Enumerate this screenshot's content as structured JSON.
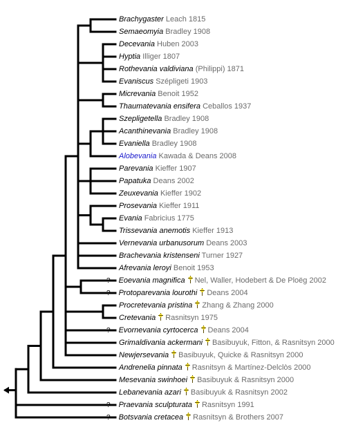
{
  "root_arrow_icon": "triangle-left-icon",
  "fossil_marker_icon": "dagger-icon",
  "uncertain_marker": "?",
  "taxa": [
    {
      "id": "brachygaster",
      "name": "Brachygaster",
      "author": "Leach 1815"
    },
    {
      "id": "semaeomyia",
      "name": "Semaeomyia",
      "author": "Bradley 1908"
    },
    {
      "id": "decevania",
      "name": "Decevania",
      "author": "Huben 2003"
    },
    {
      "id": "hyptia",
      "name": "Hyptia",
      "author": "Illiger 1807"
    },
    {
      "id": "rothevania",
      "name": "Rothevania valdiviana",
      "author": "(Philippi) 1871"
    },
    {
      "id": "evaniscus",
      "name": "Evaniscus",
      "author": "Szépligeti 1903"
    },
    {
      "id": "micrevania",
      "name": "Micrevania",
      "author": "Benoit 1952"
    },
    {
      "id": "thaumatevania",
      "name": "Thaumatevania ensifera",
      "author": "Ceballos 1937"
    },
    {
      "id": "szepligetella",
      "name": "Szepligetella",
      "author": "Bradley 1908"
    },
    {
      "id": "acanthinevania",
      "name": "Acanthinevania",
      "author": "Bradley 1908"
    },
    {
      "id": "evaniella",
      "name": "Evaniella",
      "author": "Bradley 1908"
    },
    {
      "id": "alobevania",
      "name": "Alobevania",
      "author": "Kawada & Deans 2008",
      "link": true
    },
    {
      "id": "parevania",
      "name": "Parevania",
      "author": "Kieffer 1907"
    },
    {
      "id": "papatuka",
      "name": "Papatuka",
      "author": "Deans 2002"
    },
    {
      "id": "zeuxevania",
      "name": "Zeuxevania",
      "author": "Kieffer 1902"
    },
    {
      "id": "prosevania",
      "name": "Prosevania",
      "author": "Kieffer 1911"
    },
    {
      "id": "evania",
      "name": "Evania",
      "author": "Fabricius 1775"
    },
    {
      "id": "trissevania",
      "name": "Trissevania anemotis",
      "author": "Kieffer 1913"
    },
    {
      "id": "vernevania",
      "name": "Vernevania urbanusorum",
      "author": "Deans 2003"
    },
    {
      "id": "brachevania",
      "name": "Brachevania kristenseni",
      "author": "Turner 1927"
    },
    {
      "id": "afrevania",
      "name": "Afrevania leroyi",
      "author": "Benoit 1953"
    },
    {
      "id": "eoevania",
      "name": "Eoevania magnifica",
      "author": "Nel, Waller, Hodebert & De Ploëg 2002",
      "fossil": true,
      "uncertain": true
    },
    {
      "id": "protoparevania",
      "name": "Protoparevania lourothi",
      "author": "Deans 2004",
      "fossil": true,
      "uncertain": true
    },
    {
      "id": "procretevania",
      "name": "Procretevania pristina",
      "author": "Zhang & Zhang 2000",
      "fossil": true
    },
    {
      "id": "cretevania",
      "name": "Cretevania",
      "author": "Rasnitsyn 1975",
      "fossil": true
    },
    {
      "id": "evornevania",
      "name": "Evornevania cyrtocerca",
      "author": "Deans 2004",
      "fossil": true,
      "uncertain": true
    },
    {
      "id": "grimaldivania",
      "name": "Grimaldivania ackermani",
      "author": "Basibuyuk, Fitton, & Rasnitsyn 2000",
      "fossil": true
    },
    {
      "id": "newjersevania",
      "name": "Newjersevania",
      "author": "Basibuyuk, Quicke & Rasnitsyn 2000",
      "fossil": true
    },
    {
      "id": "andrenelia",
      "name": "Andrenelia pinnata",
      "author": "Rasnitsyn & Martínez-Delclòs 2000",
      "fossil": true
    },
    {
      "id": "mesevania",
      "name": "Mesevania swinhoei",
      "author": "Basibuyuk & Rasnitsyn 2000",
      "fossil": true
    },
    {
      "id": "lebanevania",
      "name": "Lebanevania azari",
      "author": "Basibuyuk & Rasnitsyn 2002",
      "fossil": true
    },
    {
      "id": "praevania",
      "name": "Praevania sculpturata",
      "author": "Rasnitsyn 1991",
      "fossil": true,
      "uncertain": true
    },
    {
      "id": "botsvania",
      "name": "Botsvania cretacea",
      "author": "Rasnitsyn & Brothers  2007",
      "fossil": true,
      "uncertain": true
    }
  ]
}
